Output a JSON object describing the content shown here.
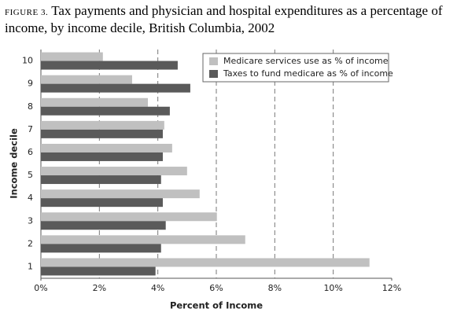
{
  "chart_data": {
    "type": "barh",
    "figure_label": "FIGURE 3.",
    "title": "Tax payments and physician and hospital expenditures as a percentage of income, by income decile, British Columbia, 2002",
    "x_label": "Percent of Income",
    "y_label": "Income decile",
    "categories": [
      "1",
      "2",
      "3",
      "4",
      "5",
      "6",
      "7",
      "8",
      "9",
      "10"
    ],
    "series": [
      {
        "name": "Medicare services use as % of income",
        "color": "#c0c0c0",
        "values": [
          11.24,
          6.99,
          6.02,
          5.43,
          5.0,
          4.49,
          4.22,
          3.66,
          3.12,
          2.12
        ]
      },
      {
        "name": "Taxes to fund medicare as % of income",
        "color": "#5a5a5a",
        "values": [
          3.92,
          4.11,
          4.27,
          4.17,
          4.11,
          4.17,
          4.17,
          4.41,
          5.11,
          4.68
        ]
      }
    ],
    "xlim": [
      0,
      12
    ],
    "xticks": [
      {
        "value": 0,
        "label": "0%"
      },
      {
        "value": 2,
        "label": "2%"
      },
      {
        "value": 4,
        "label": "4%"
      },
      {
        "value": 6,
        "label": "6%"
      },
      {
        "value": 8,
        "label": "8%"
      },
      {
        "value": 10,
        "label": "10%"
      },
      {
        "value": 12,
        "label": "12%"
      }
    ],
    "grid": true,
    "legend": "upper right"
  }
}
